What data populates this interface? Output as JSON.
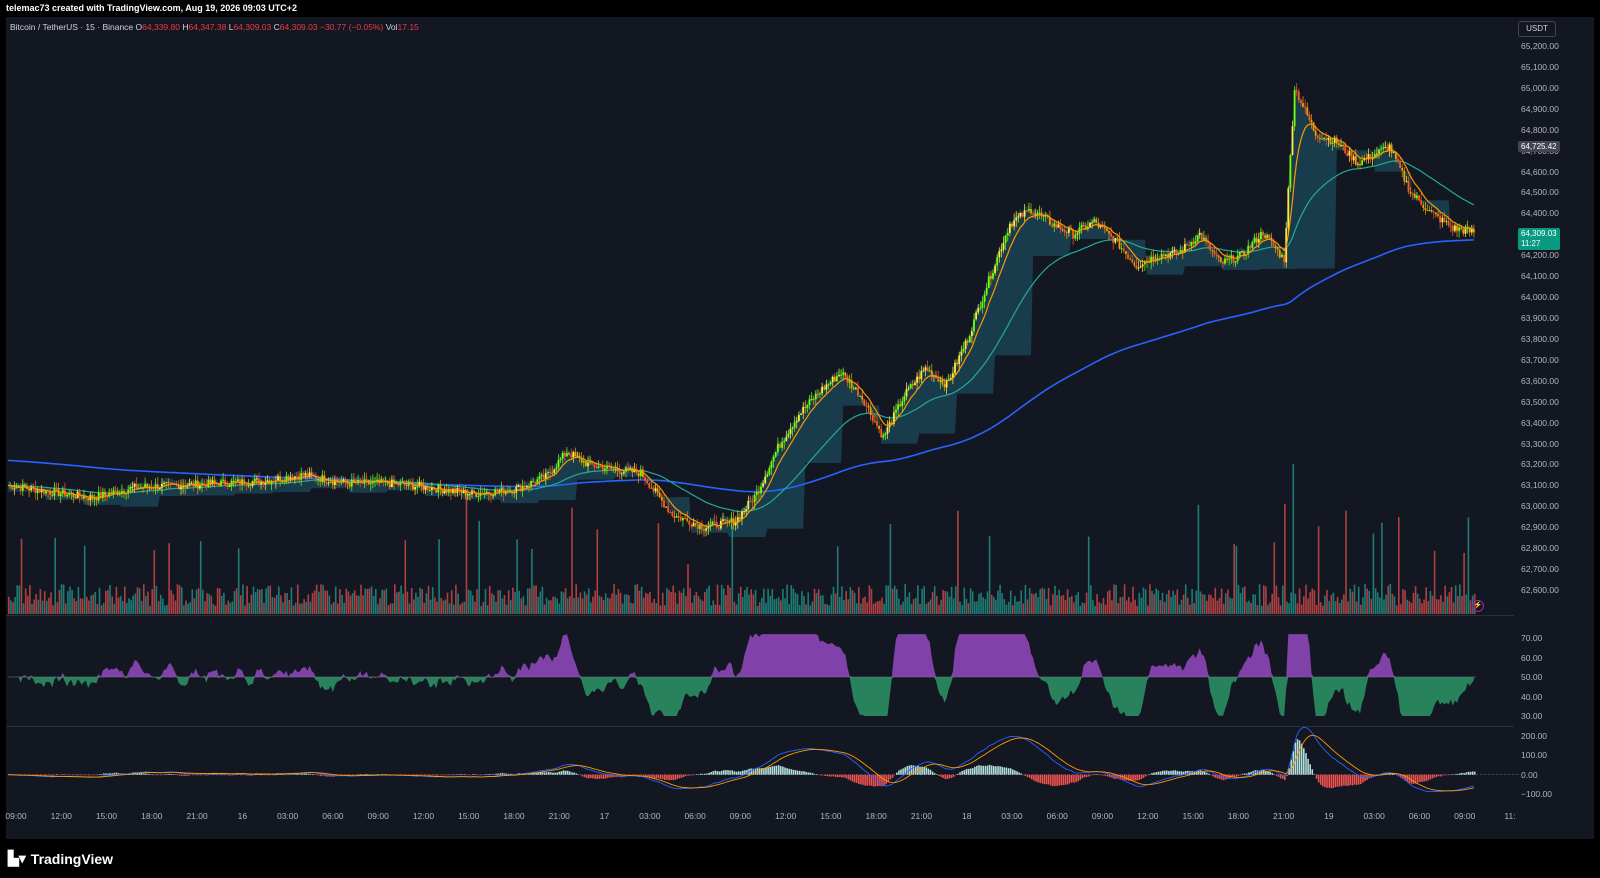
{
  "header": {
    "credit": "telemac73 created with TradingView.com, Aug 19, 2026 09:03 UTC+2"
  },
  "symbol": {
    "name": "Bitcoin / TetherUS · 15 · Binance",
    "o_label": "O",
    "o_val": "64,339.80",
    "h_label": "H",
    "h_val": "64,347.38",
    "l_label": "L",
    "l_val": "64,309.03",
    "c_label": "C",
    "c_val": "64,309.03",
    "chg": "−30.77 (−0.05%)",
    "vol_label": "Vol",
    "vol_val": "17.15"
  },
  "currency_button": "USDT",
  "price_axis": [
    "65,200.00",
    "65,100.00",
    "65,000.00",
    "64,900.00",
    "64,800.00",
    "64,700.00",
    "64,600.00",
    "64,500.00",
    "64,400.00",
    "64,300.00",
    "64,200.00",
    "64,100.00",
    "64,000.00",
    "63,900.00",
    "63,800.00",
    "63,700.00",
    "63,600.00",
    "63,500.00",
    "63,400.00",
    "63,300.00",
    "63,200.00",
    "63,100.00",
    "63,000.00",
    "62,900.00",
    "62,800.00",
    "62,700.00",
    "62,600.00"
  ],
  "price_tags": {
    "high_tag": "64,725.42",
    "last_price": "64,309.03",
    "countdown": "11:27"
  },
  "rsi_axis": [
    "70.00",
    "60.00",
    "50.00",
    "40.00",
    "30.00"
  ],
  "macd_axis": [
    "200.00",
    "100.00",
    "0.00",
    "−100.00"
  ],
  "time_axis": [
    "09:00",
    "12:00",
    "15:00",
    "18:00",
    "21:00",
    "16",
    "03:00",
    "06:00",
    "09:00",
    "12:00",
    "15:00",
    "18:00",
    "21:00",
    "17",
    "03:00",
    "06:00",
    "09:00",
    "12:00",
    "15:00",
    "18:00",
    "21:00",
    "18",
    "03:00",
    "06:00",
    "09:00",
    "12:00",
    "15:00",
    "18:00",
    "21:00",
    "19",
    "03:00",
    "06:00",
    "09:00",
    "11:"
  ],
  "colors": {
    "background": "#131722",
    "up": "#26a69a",
    "down": "#ef5350",
    "bright_up": "#4caf50",
    "ema_fast": "#ff9800",
    "ema_mid": "#22ab94",
    "ema_slow": "#2962ff",
    "cloud": "#1b4a5a",
    "rsi_up": "#9c4dcc",
    "rsi_down": "#2e9e6b",
    "last_price_tag": "#089981"
  },
  "branding": "TradingView",
  "chart_data": {
    "type": "candlestick",
    "symbol": "Bitcoin / TetherUS",
    "interval": "15",
    "ylim": [
      62550,
      65250
    ],
    "rsi_range": [
      25,
      75
    ],
    "macd_range": [
      -130,
      210
    ],
    "key_closes": [
      [
        0,
        63100
      ],
      [
        20,
        63070
      ],
      [
        40,
        63040
      ],
      [
        60,
        63090
      ],
      [
        80,
        63100
      ],
      [
        100,
        63110
      ],
      [
        120,
        63120
      ],
      [
        140,
        63150
      ],
      [
        160,
        63110
      ],
      [
        180,
        63110
      ],
      [
        200,
        63090
      ],
      [
        220,
        63060
      ],
      [
        240,
        63080
      ],
      [
        255,
        63140
      ],
      [
        265,
        63260
      ],
      [
        275,
        63200
      ],
      [
        285,
        63180
      ],
      [
        300,
        63160
      ],
      [
        315,
        62960
      ],
      [
        330,
        62900
      ],
      [
        345,
        62930
      ],
      [
        355,
        63060
      ],
      [
        365,
        63280
      ],
      [
        375,
        63440
      ],
      [
        385,
        63550
      ],
      [
        395,
        63640
      ],
      [
        405,
        63520
      ],
      [
        415,
        63330
      ],
      [
        425,
        63530
      ],
      [
        435,
        63660
      ],
      [
        445,
        63580
      ],
      [
        455,
        63800
      ],
      [
        465,
        64080
      ],
      [
        475,
        64350
      ],
      [
        485,
        64420
      ],
      [
        495,
        64350
      ],
      [
        505,
        64300
      ],
      [
        515,
        64360
      ],
      [
        525,
        64270
      ],
      [
        535,
        64150
      ],
      [
        545,
        64200
      ],
      [
        555,
        64210
      ],
      [
        565,
        64300
      ],
      [
        575,
        64160
      ],
      [
        585,
        64200
      ],
      [
        595,
        64310
      ],
      [
        605,
        64180
      ],
      [
        610,
        65000
      ],
      [
        620,
        64780
      ],
      [
        630,
        64740
      ],
      [
        640,
        64640
      ],
      [
        655,
        64720
      ],
      [
        665,
        64500
      ],
      [
        675,
        64400
      ],
      [
        685,
        64330
      ],
      [
        695,
        64309
      ]
    ]
  }
}
